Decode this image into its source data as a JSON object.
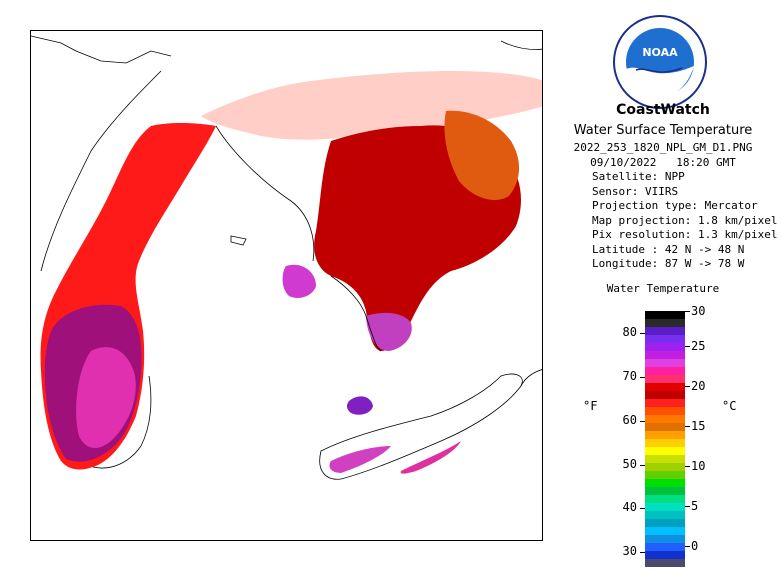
{
  "header": {
    "brand": "CoastWatch",
    "subtitle": "Water Surface Temperature",
    "filename": "2022_253_1820_NPL_GM_D1.PNG",
    "date": "09/10/2022",
    "time": "18:20 GMT"
  },
  "metadata": [
    {
      "label": "Satellite:",
      "value": "NPP"
    },
    {
      "label": "Sensor:",
      "value": "VIIRS"
    },
    {
      "label": "Projection type:",
      "value": "Mercator"
    },
    {
      "label": "Map projection:",
      "value": "1.8 km/pixel"
    },
    {
      "label": "Pix resolution:",
      "value": "1.3 km/pixel"
    },
    {
      "label": "Latitude :",
      "value": "42 N -> 48 N"
    },
    {
      "label": "Longitude:",
      "value": "87 W -> 78 W"
    }
  ],
  "logo": {
    "text": "NOAA",
    "icon": "noaa-logo-icon",
    "ring_color": "#1a2f8a",
    "sky_color": "#1e6fd0"
  },
  "legend": {
    "title": "Water Temperature",
    "unit_f": "°F",
    "unit_c": "°C",
    "fahrenheit_ticks": [
      "30",
      "40",
      "50",
      "60",
      "70",
      "80"
    ],
    "celsius_ticks": [
      "0",
      "5",
      "10",
      "15",
      "20",
      "25",
      "30"
    ],
    "colors": [
      "#000000",
      "#2a2a2a",
      "#5a1ec8",
      "#7a2ef0",
      "#a020f0",
      "#c020e0",
      "#e040e0",
      "#ff20a0",
      "#ff3070",
      "#e00000",
      "#c00000",
      "#ff2020",
      "#ff5000",
      "#ff7800",
      "#e07000",
      "#ffa000",
      "#ffd000",
      "#ffff00",
      "#c8e000",
      "#a0d000",
      "#60d000",
      "#00e000",
      "#00c040",
      "#00e080",
      "#00e0c0",
      "#00c0c0",
      "#00a0c0",
      "#00c0ff",
      "#1090e0",
      "#2060ff",
      "#1030d0",
      "#4a4a6a"
    ]
  }
}
